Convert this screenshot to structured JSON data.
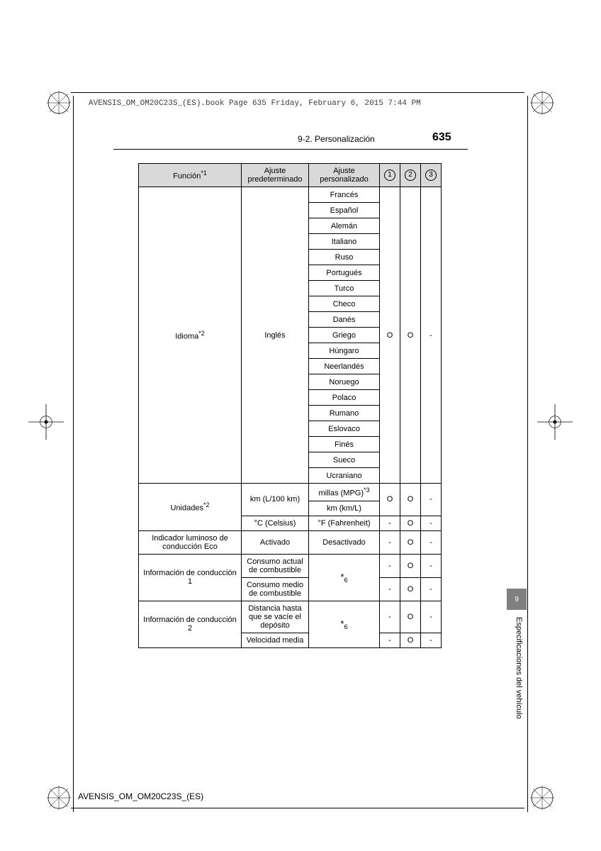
{
  "page": {
    "header_line": "AVENSIS_OM_OM20C23S_(ES).book  Page 635  Friday, February 6, 2015  7:44 PM",
    "section": "9-2. Personalización",
    "number": "635",
    "footer": "AVENSIS_OM_OM20C23S_(ES)",
    "tab_number": "9",
    "vertical_label": "Especificaciones del vehículo"
  },
  "table": {
    "headers": {
      "func": "Función",
      "func_sup": "*1",
      "def": "Ajuste predeterminado",
      "pers": "Ajuste personalizado",
      "c1": "1",
      "c2": "2",
      "c3": "3"
    },
    "languages_row": {
      "func": "Idioma",
      "func_sup": "*2",
      "def": "Inglés",
      "options": [
        "Francés",
        "Español",
        "Alemán",
        "Italiano",
        "Ruso",
        "Portugués",
        "Turco",
        "Checo",
        "Danés",
        "Griego",
        "Húngaro",
        "Neerlandés",
        "Noruego",
        "Polaco",
        "Rumano",
        "Eslovaco",
        "Finés",
        "Sueco",
        "Ucraniano"
      ],
      "c1": "O",
      "c2": "O",
      "c3": "-"
    },
    "units_rows": {
      "func": "Unidades",
      "func_sup": "*2",
      "r1": {
        "def": "km (L/100 km)",
        "pers": "millas (MPG)",
        "pers_sup": "*3",
        "c1": "O",
        "c2": "O",
        "c3": "-"
      },
      "r2": {
        "pers": "km (km/L)"
      },
      "r3": {
        "def": "°C (Celsius)",
        "pers": "°F (Fahrenheit)",
        "c1": "-",
        "c2": "O",
        "c3": "-"
      }
    },
    "eco_row": {
      "func": "Indicador luminoso de con­ducción Eco",
      "def": "Activado",
      "pers": "Desactivado",
      "c1": "-",
      "c2": "O",
      "c3": "-"
    },
    "drive1": {
      "func": "Información de conducción 1",
      "r1": {
        "def": "Consumo actual de combustible",
        "pers": "*",
        "pers_sub": "6",
        "c1": "-",
        "c2": "O",
        "c3": "-"
      },
      "r2": {
        "def": "Consumo medio de combustible",
        "c1": "-",
        "c2": "O",
        "c3": "-"
      }
    },
    "drive2": {
      "func": "Información de conducción 2",
      "r1": {
        "def": "Distancia hasta que se vacíe el depósito",
        "pers": "*",
        "pers_sub": "6",
        "c1": "-",
        "c2": "O",
        "c3": "-"
      },
      "r2": {
        "def": "Velocidad media",
        "c1": "-",
        "c2": "O",
        "c3": "-"
      }
    }
  },
  "style": {
    "header_bg": "#d9d9d9",
    "border": "#000000",
    "tab_bg": "#808080"
  }
}
